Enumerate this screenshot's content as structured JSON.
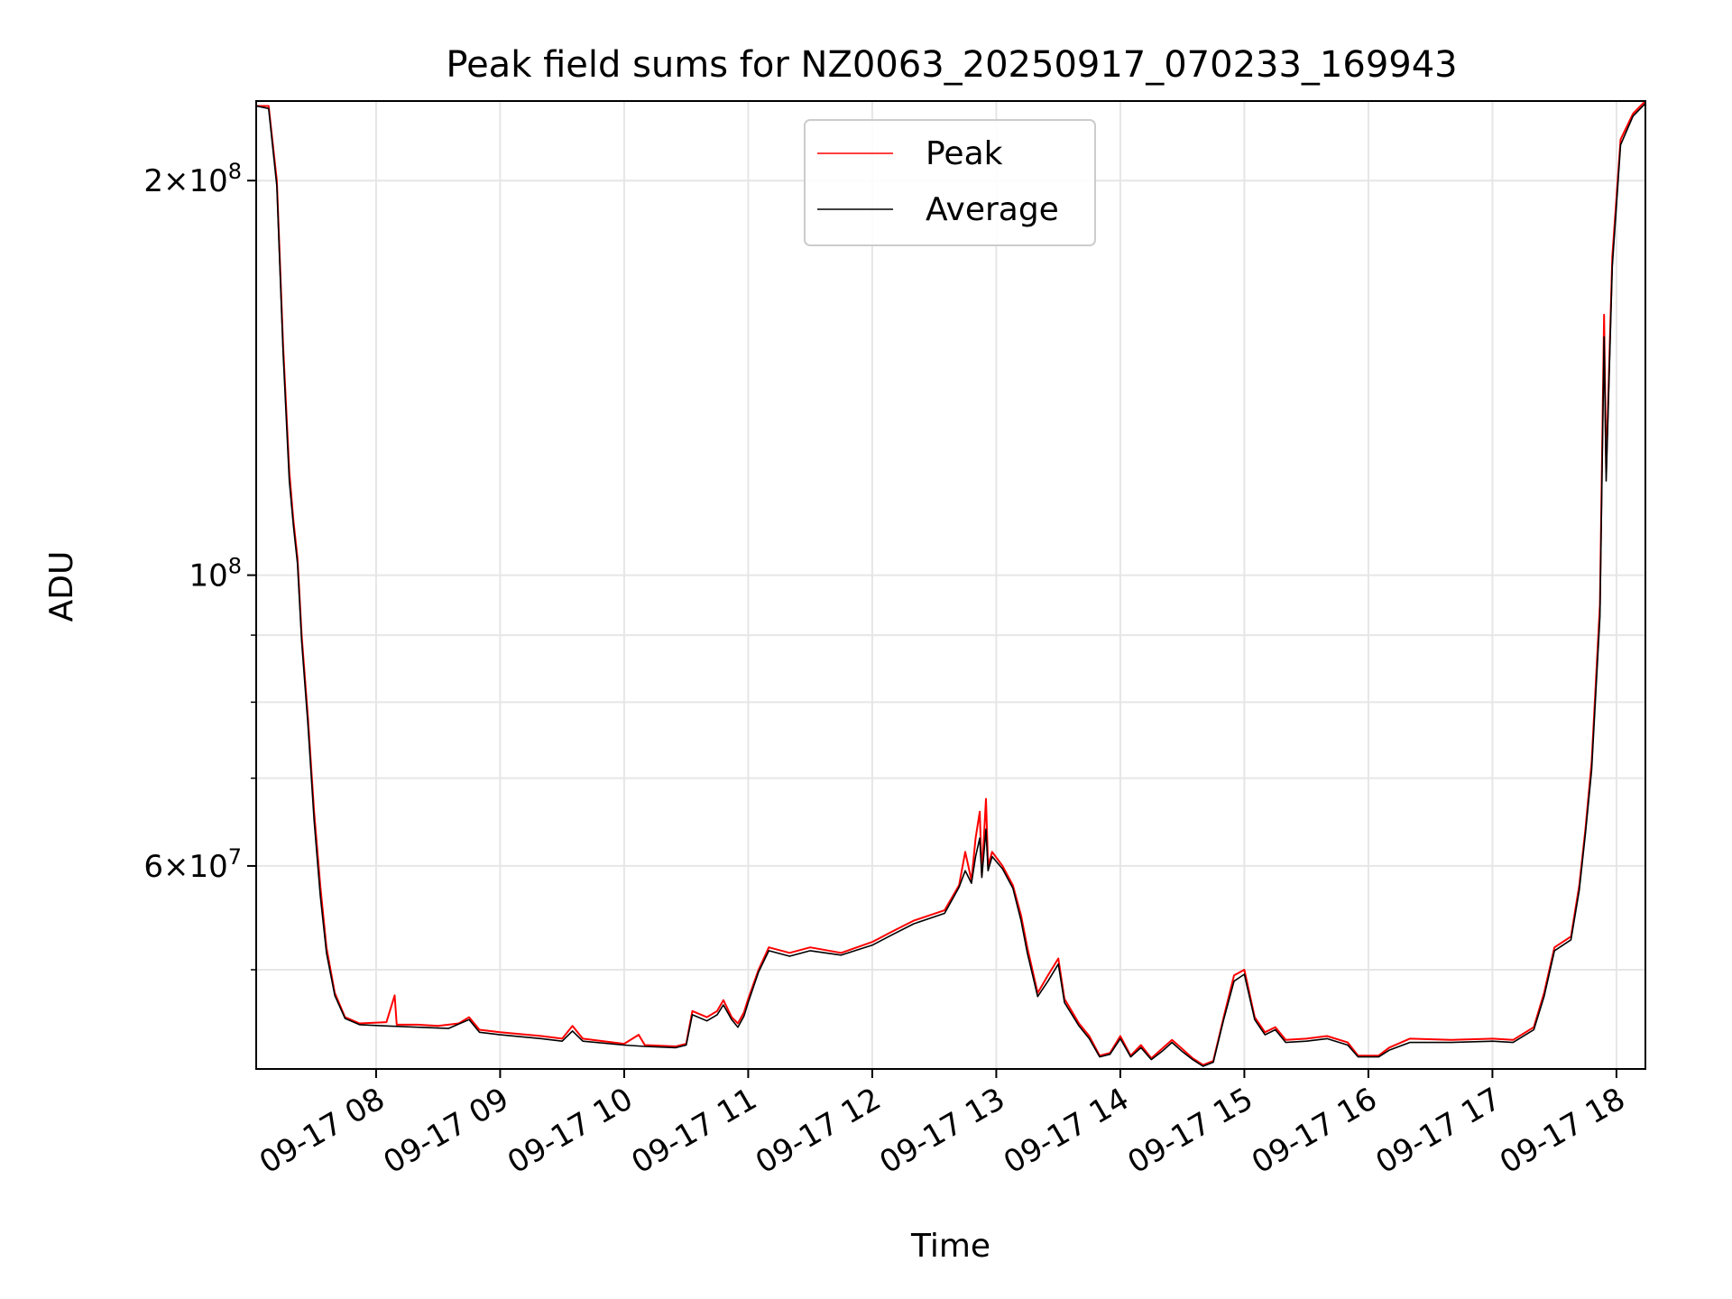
{
  "chart_data": {
    "type": "line",
    "title": "Peak field sums for NZ0063_20250917_070233_169943",
    "xlabel": "Time",
    "ylabel": "ADU",
    "y_scale": "log",
    "ylim": [
      42000000,
      230000000
    ],
    "xlim": [
      "2025-09-17 07:02",
      "2025-09-17 18:14"
    ],
    "grid": true,
    "legend_position": "upper center",
    "x_ticks": [
      {
        "time": "2025-09-17 08:00",
        "label": "09-17 08"
      },
      {
        "time": "2025-09-17 09:00",
        "label": "09-17 09"
      },
      {
        "time": "2025-09-17 10:00",
        "label": "09-17 10"
      },
      {
        "time": "2025-09-17 11:00",
        "label": "09-17 11"
      },
      {
        "time": "2025-09-17 12:00",
        "label": "09-17 12"
      },
      {
        "time": "2025-09-17 13:00",
        "label": "09-17 13"
      },
      {
        "time": "2025-09-17 14:00",
        "label": "09-17 14"
      },
      {
        "time": "2025-09-17 15:00",
        "label": "09-17 15"
      },
      {
        "time": "2025-09-17 16:00",
        "label": "09-17 16"
      },
      {
        "time": "2025-09-17 17:00",
        "label": "09-17 17"
      },
      {
        "time": "2025-09-17 18:00",
        "label": "09-17 18"
      }
    ],
    "y_ticks_major": [
      {
        "value": 60000000,
        "mant": "6",
        "exp": "7"
      },
      {
        "value": 100000000,
        "mant": "",
        "exp": "8"
      },
      {
        "value": 200000000,
        "mant": "2",
        "exp": "8"
      }
    ],
    "y_ticks_minor": [
      50000000,
      70000000,
      80000000,
      90000000
    ],
    "series": [
      {
        "name": "Peak",
        "color": "#ff0000",
        "points": [
          [
            "2025-09-17 07:02",
            228000000
          ],
          [
            "2025-09-17 07:08",
            228000000
          ],
          [
            "2025-09-17 07:12",
            200000000
          ],
          [
            "2025-09-17 07:15",
            150000000
          ],
          [
            "2025-09-17 07:18",
            120000000
          ],
          [
            "2025-09-17 07:20",
            110000000
          ],
          [
            "2025-09-17 07:22",
            103000000
          ],
          [
            "2025-09-17 07:24",
            90000000
          ],
          [
            "2025-09-17 07:27",
            78000000
          ],
          [
            "2025-09-17 07:30",
            66000000
          ],
          [
            "2025-09-17 07:33",
            58000000
          ],
          [
            "2025-09-17 07:36",
            52000000
          ],
          [
            "2025-09-17 07:40",
            48000000
          ],
          [
            "2025-09-17 07:45",
            46000000
          ],
          [
            "2025-09-17 07:52",
            45500000
          ],
          [
            "2025-09-17 08:05",
            45600000
          ],
          [
            "2025-09-17 08:09",
            47800000
          ],
          [
            "2025-09-17 08:10",
            45400000
          ],
          [
            "2025-09-17 08:20",
            45400000
          ],
          [
            "2025-09-17 08:30",
            45300000
          ],
          [
            "2025-09-17 08:40",
            45500000
          ],
          [
            "2025-09-17 08:45",
            46000000
          ],
          [
            "2025-09-17 08:50",
            45000000
          ],
          [
            "2025-09-17 09:00",
            44800000
          ],
          [
            "2025-09-17 09:20",
            44500000
          ],
          [
            "2025-09-17 09:30",
            44300000
          ],
          [
            "2025-09-17 09:35",
            45300000
          ],
          [
            "2025-09-17 09:40",
            44300000
          ],
          [
            "2025-09-17 10:00",
            43900000
          ],
          [
            "2025-09-17 10:07",
            44600000
          ],
          [
            "2025-09-17 10:10",
            43800000
          ],
          [
            "2025-09-17 10:25",
            43700000
          ],
          [
            "2025-09-17 10:30",
            43900000
          ],
          [
            "2025-09-17 10:33",
            46500000
          ],
          [
            "2025-09-17 10:40",
            46000000
          ],
          [
            "2025-09-17 10:45",
            46500000
          ],
          [
            "2025-09-17 10:48",
            47400000
          ],
          [
            "2025-09-17 10:52",
            46000000
          ],
          [
            "2025-09-17 10:55",
            45500000
          ],
          [
            "2025-09-17 10:58",
            46400000
          ],
          [
            "2025-09-17 11:00",
            47500000
          ],
          [
            "2025-09-17 11:05",
            50000000
          ],
          [
            "2025-09-17 11:10",
            52000000
          ],
          [
            "2025-09-17 11:20",
            51500000
          ],
          [
            "2025-09-17 11:30",
            52000000
          ],
          [
            "2025-09-17 11:45",
            51500000
          ],
          [
            "2025-09-17 12:00",
            52500000
          ],
          [
            "2025-09-17 12:10",
            53500000
          ],
          [
            "2025-09-17 12:20",
            54500000
          ],
          [
            "2025-09-17 12:35",
            55500000
          ],
          [
            "2025-09-17 12:42",
            58000000
          ],
          [
            "2025-09-17 12:45",
            61500000
          ],
          [
            "2025-09-17 12:48",
            58500000
          ],
          [
            "2025-09-17 12:50",
            63000000
          ],
          [
            "2025-09-17 12:52",
            66000000
          ],
          [
            "2025-09-17 12:53",
            59000000
          ],
          [
            "2025-09-17 12:55",
            67500000
          ],
          [
            "2025-09-17 12:56",
            60000000
          ],
          [
            "2025-09-17 12:58",
            61500000
          ],
          [
            "2025-09-17 13:03",
            60000000
          ],
          [
            "2025-09-17 13:08",
            58000000
          ],
          [
            "2025-09-17 13:12",
            55000000
          ],
          [
            "2025-09-17 13:15",
            52000000
          ],
          [
            "2025-09-17 13:20",
            48000000
          ],
          [
            "2025-09-17 13:25",
            49500000
          ],
          [
            "2025-09-17 13:30",
            51000000
          ],
          [
            "2025-09-17 13:33",
            47500000
          ],
          [
            "2025-09-17 13:40",
            45500000
          ],
          [
            "2025-09-17 13:45",
            44500000
          ],
          [
            "2025-09-17 13:50",
            43000000
          ],
          [
            "2025-09-17 13:55",
            43200000
          ],
          [
            "2025-09-17 14:00",
            44500000
          ],
          [
            "2025-09-17 14:05",
            43000000
          ],
          [
            "2025-09-17 14:10",
            43800000
          ],
          [
            "2025-09-17 14:15",
            42800000
          ],
          [
            "2025-09-17 14:20",
            43500000
          ],
          [
            "2025-09-17 14:25",
            44200000
          ],
          [
            "2025-09-17 14:30",
            43500000
          ],
          [
            "2025-09-17 14:35",
            42800000
          ],
          [
            "2025-09-17 14:40",
            42300000
          ],
          [
            "2025-09-17 14:45",
            42600000
          ],
          [
            "2025-09-17 14:50",
            46000000
          ],
          [
            "2025-09-17 14:55",
            49500000
          ],
          [
            "2025-09-17 15:00",
            50000000
          ],
          [
            "2025-09-17 15:05",
            46000000
          ],
          [
            "2025-09-17 15:10",
            44800000
          ],
          [
            "2025-09-17 15:15",
            45200000
          ],
          [
            "2025-09-17 15:20",
            44200000
          ],
          [
            "2025-09-17 15:30",
            44300000
          ],
          [
            "2025-09-17 15:40",
            44500000
          ],
          [
            "2025-09-17 15:50",
            44000000
          ],
          [
            "2025-09-17 15:55",
            43000000
          ],
          [
            "2025-09-17 16:05",
            43000000
          ],
          [
            "2025-09-17 16:10",
            43600000
          ],
          [
            "2025-09-17 16:20",
            44300000
          ],
          [
            "2025-09-17 16:40",
            44200000
          ],
          [
            "2025-09-17 17:00",
            44300000
          ],
          [
            "2025-09-17 17:10",
            44200000
          ],
          [
            "2025-09-17 17:20",
            45200000
          ],
          [
            "2025-09-17 17:25",
            48000000
          ],
          [
            "2025-09-17 17:30",
            52000000
          ],
          [
            "2025-09-17 17:38",
            53000000
          ],
          [
            "2025-09-17 17:42",
            58000000
          ],
          [
            "2025-09-17 17:45",
            64000000
          ],
          [
            "2025-09-17 17:48",
            72000000
          ],
          [
            "2025-09-17 17:52",
            95000000
          ],
          [
            "2025-09-17 17:54",
            158000000
          ],
          [
            "2025-09-17 17:55",
            120000000
          ],
          [
            "2025-09-17 17:58",
            175000000
          ],
          [
            "2025-09-17 18:02",
            215000000
          ],
          [
            "2025-09-17 18:08",
            225000000
          ],
          [
            "2025-09-17 18:14",
            230000000
          ]
        ]
      },
      {
        "name": "Average",
        "color": "#000000",
        "points": [
          [
            "2025-09-17 07:02",
            228000000
          ],
          [
            "2025-09-17 07:08",
            227000000
          ],
          [
            "2025-09-17 07:12",
            198000000
          ],
          [
            "2025-09-17 07:15",
            148000000
          ],
          [
            "2025-09-17 07:18",
            118000000
          ],
          [
            "2025-09-17 07:20",
            109000000
          ],
          [
            "2025-09-17 07:22",
            102000000
          ],
          [
            "2025-09-17 07:24",
            89000000
          ],
          [
            "2025-09-17 07:27",
            77000000
          ],
          [
            "2025-09-17 07:30",
            65000000
          ],
          [
            "2025-09-17 07:33",
            57000000
          ],
          [
            "2025-09-17 07:36",
            51500000
          ],
          [
            "2025-09-17 07:40",
            47800000
          ],
          [
            "2025-09-17 07:45",
            45900000
          ],
          [
            "2025-09-17 07:52",
            45400000
          ],
          [
            "2025-09-17 08:05",
            45300000
          ],
          [
            "2025-09-17 08:20",
            45200000
          ],
          [
            "2025-09-17 08:35",
            45100000
          ],
          [
            "2025-09-17 08:45",
            45800000
          ],
          [
            "2025-09-17 08:50",
            44800000
          ],
          [
            "2025-09-17 09:00",
            44600000
          ],
          [
            "2025-09-17 09:20",
            44300000
          ],
          [
            "2025-09-17 09:30",
            44100000
          ],
          [
            "2025-09-17 09:35",
            44900000
          ],
          [
            "2025-09-17 09:40",
            44100000
          ],
          [
            "2025-09-17 10:00",
            43800000
          ],
          [
            "2025-09-17 10:10",
            43700000
          ],
          [
            "2025-09-17 10:25",
            43600000
          ],
          [
            "2025-09-17 10:30",
            43800000
          ],
          [
            "2025-09-17 10:33",
            46200000
          ],
          [
            "2025-09-17 10:40",
            45700000
          ],
          [
            "2025-09-17 10:45",
            46200000
          ],
          [
            "2025-09-17 10:48",
            47000000
          ],
          [
            "2025-09-17 10:52",
            45800000
          ],
          [
            "2025-09-17 10:55",
            45200000
          ],
          [
            "2025-09-17 10:58",
            46100000
          ],
          [
            "2025-09-17 11:00",
            47200000
          ],
          [
            "2025-09-17 11:05",
            49800000
          ],
          [
            "2025-09-17 11:10",
            51700000
          ],
          [
            "2025-09-17 11:20",
            51200000
          ],
          [
            "2025-09-17 11:30",
            51700000
          ],
          [
            "2025-09-17 11:45",
            51300000
          ],
          [
            "2025-09-17 12:00",
            52200000
          ],
          [
            "2025-09-17 12:10",
            53200000
          ],
          [
            "2025-09-17 12:20",
            54200000
          ],
          [
            "2025-09-17 12:35",
            55200000
          ],
          [
            "2025-09-17 12:42",
            57800000
          ],
          [
            "2025-09-17 12:45",
            59500000
          ],
          [
            "2025-09-17 12:48",
            58200000
          ],
          [
            "2025-09-17 12:50",
            61000000
          ],
          [
            "2025-09-17 12:52",
            63000000
          ],
          [
            "2025-09-17 12:53",
            58800000
          ],
          [
            "2025-09-17 12:55",
            64000000
          ],
          [
            "2025-09-17 12:56",
            59500000
          ],
          [
            "2025-09-17 12:58",
            61000000
          ],
          [
            "2025-09-17 13:03",
            59700000
          ],
          [
            "2025-09-17 13:08",
            57700000
          ],
          [
            "2025-09-17 13:12",
            54500000
          ],
          [
            "2025-09-17 13:15",
            51500000
          ],
          [
            "2025-09-17 13:20",
            47700000
          ],
          [
            "2025-09-17 13:25",
            49000000
          ],
          [
            "2025-09-17 13:30",
            50500000
          ],
          [
            "2025-09-17 13:33",
            47200000
          ],
          [
            "2025-09-17 13:40",
            45300000
          ],
          [
            "2025-09-17 13:45",
            44300000
          ],
          [
            "2025-09-17 13:50",
            42900000
          ],
          [
            "2025-09-17 13:55",
            43100000
          ],
          [
            "2025-09-17 14:00",
            44300000
          ],
          [
            "2025-09-17 14:05",
            42900000
          ],
          [
            "2025-09-17 14:10",
            43600000
          ],
          [
            "2025-09-17 14:15",
            42700000
          ],
          [
            "2025-09-17 14:20",
            43300000
          ],
          [
            "2025-09-17 14:25",
            44000000
          ],
          [
            "2025-09-17 14:30",
            43300000
          ],
          [
            "2025-09-17 14:35",
            42700000
          ],
          [
            "2025-09-17 14:40",
            42200000
          ],
          [
            "2025-09-17 14:45",
            42500000
          ],
          [
            "2025-09-17 14:50",
            45800000
          ],
          [
            "2025-09-17 14:55",
            49000000
          ],
          [
            "2025-09-17 15:00",
            49600000
          ],
          [
            "2025-09-17 15:05",
            45800000
          ],
          [
            "2025-09-17 15:10",
            44600000
          ],
          [
            "2025-09-17 15:15",
            45000000
          ],
          [
            "2025-09-17 15:20",
            44000000
          ],
          [
            "2025-09-17 15:30",
            44100000
          ],
          [
            "2025-09-17 15:40",
            44300000
          ],
          [
            "2025-09-17 15:50",
            43800000
          ],
          [
            "2025-09-17 15:55",
            42900000
          ],
          [
            "2025-09-17 16:05",
            42900000
          ],
          [
            "2025-09-17 16:10",
            43400000
          ],
          [
            "2025-09-17 16:20",
            44000000
          ],
          [
            "2025-09-17 16:40",
            44000000
          ],
          [
            "2025-09-17 17:00",
            44100000
          ],
          [
            "2025-09-17 17:10",
            44000000
          ],
          [
            "2025-09-17 17:20",
            45000000
          ],
          [
            "2025-09-17 17:25",
            47700000
          ],
          [
            "2025-09-17 17:30",
            51700000
          ],
          [
            "2025-09-17 17:38",
            52700000
          ],
          [
            "2025-09-17 17:42",
            57500000
          ],
          [
            "2025-09-17 17:45",
            63500000
          ],
          [
            "2025-09-17 17:48",
            71000000
          ],
          [
            "2025-09-17 17:52",
            93000000
          ],
          [
            "2025-09-17 17:54",
            152000000
          ],
          [
            "2025-09-17 17:55",
            118000000
          ],
          [
            "2025-09-17 17:58",
            172000000
          ],
          [
            "2025-09-17 18:02",
            213000000
          ],
          [
            "2025-09-17 18:08",
            224000000
          ],
          [
            "2025-09-17 18:14",
            229000000
          ]
        ]
      }
    ]
  }
}
